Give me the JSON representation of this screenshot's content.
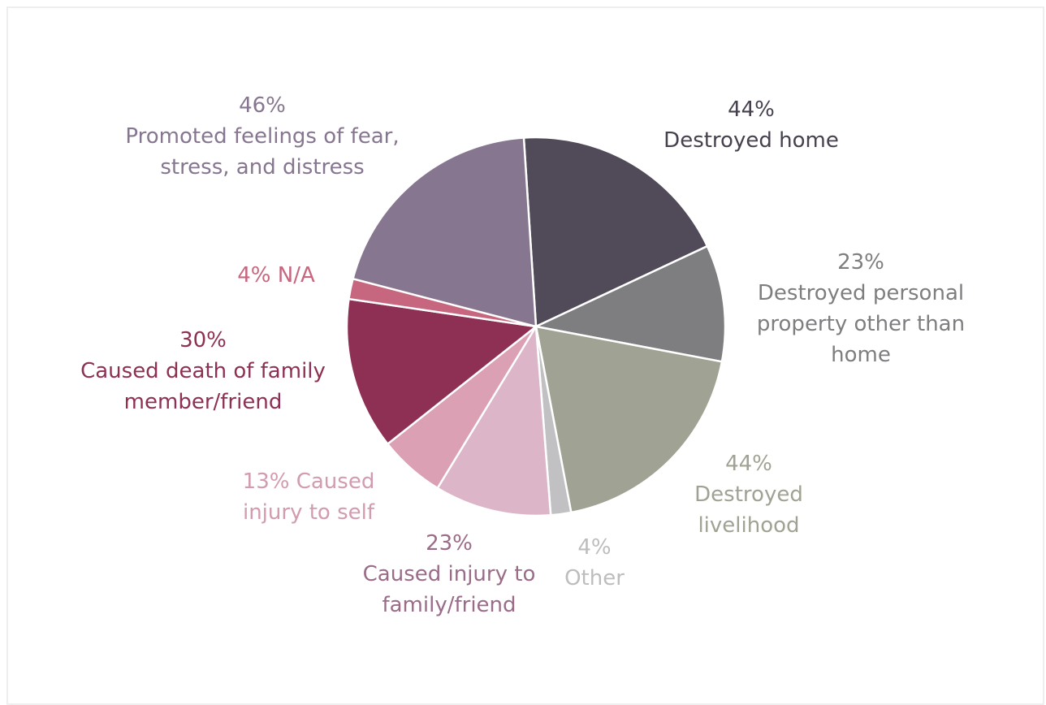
{
  "chart_data": {
    "type": "pie",
    "categories": [
      "Destroyed home",
      "Destroyed personal property other than home",
      "Destroyed livelihood",
      "Other",
      "Caused injury to family/friend",
      "Caused injury to self",
      "Caused death of family member/friend",
      "N/A",
      "Promoted feelings of fear, stress, and distress"
    ],
    "values": [
      44,
      23,
      44,
      4,
      23,
      13,
      30,
      4,
      46
    ],
    "value_labels": [
      "44%",
      "23%",
      "44%",
      "4%",
      "23%",
      "13%",
      "30%",
      "4%",
      "46%"
    ],
    "colors": [
      "#514a58",
      "#7e7e81",
      "#a0a293",
      "#c1c1c3",
      "#dcb5c8",
      "#dba0b3",
      "#8e3053",
      "#c6677f",
      "#86768f"
    ],
    "label_colors": [
      "#47404e",
      "#7e7e81",
      "#a0a293",
      "#bdbdbf",
      "#9a6c88",
      "#d29bb0",
      "#8e3053",
      "#c6677f",
      "#86768f"
    ]
  }
}
